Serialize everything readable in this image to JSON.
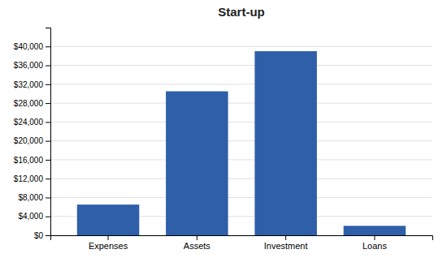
{
  "chart_data": {
    "type": "bar",
    "title": "Start-up",
    "categories": [
      "Expenses",
      "Assets",
      "Investment",
      "Loans"
    ],
    "values": [
      6500,
      30500,
      39000,
      2000
    ],
    "color": "#2E5FA8",
    "ylim": [
      0,
      44000
    ],
    "yticks": [
      {
        "value": 0,
        "label": "$0"
      },
      {
        "value": 4000,
        "label": "$4,000"
      },
      {
        "value": 8000,
        "label": "$8,000"
      },
      {
        "value": 12000,
        "label": "$12,000"
      },
      {
        "value": 16000,
        "label": "$16,000"
      },
      {
        "value": 20000,
        "label": "$20,000"
      },
      {
        "value": 24000,
        "label": "$24,000"
      },
      {
        "value": 28000,
        "label": "$28,000"
      },
      {
        "value": 32000,
        "label": "$32,000"
      },
      {
        "value": 36000,
        "label": "$36,000"
      },
      {
        "value": 40000,
        "label": "$40,000"
      }
    ],
    "grid": true
  }
}
